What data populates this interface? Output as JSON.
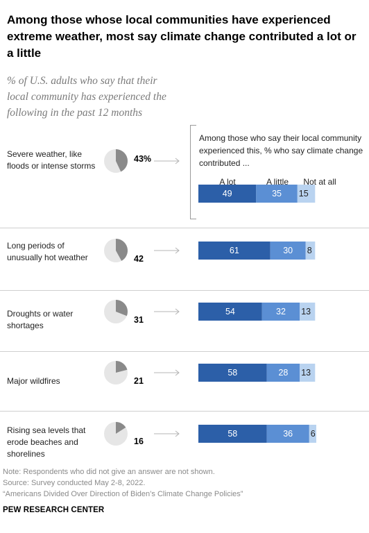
{
  "chart_data": {
    "type": "bar",
    "title": "Among those whose local communities have experienced extreme weather, most say climate change contributed a lot or a little",
    "subtitle": "% of U.S. adults who say that their local community has experienced the following in the past 12 months",
    "legend_intro": "Among those who say their local community experienced this, % who say climate change contributed ...",
    "categories": [
      "Severe weather, like floods or intense storms",
      "Long periods of unusually hot weather",
      "Droughts or water shortages",
      "Major wildfires",
      "Rising sea levels that erode beaches and shorelines"
    ],
    "experienced": [
      {
        "value": 43,
        "label": "43%"
      },
      {
        "value": 42,
        "label": "42"
      },
      {
        "value": 31,
        "label": "31"
      },
      {
        "value": 21,
        "label": "21"
      },
      {
        "value": 16,
        "label": "16"
      }
    ],
    "series": [
      {
        "name": "A lot",
        "values": [
          49,
          61,
          54,
          58,
          58
        ],
        "color": "#2c5fa8"
      },
      {
        "name": "A little",
        "values": [
          35,
          30,
          32,
          28,
          36
        ],
        "color": "#5b8fd4"
      },
      {
        "name": "Not at all",
        "values": [
          15,
          8,
          13,
          13,
          6
        ],
        "color": "#b9d3f0"
      }
    ],
    "stacked": true,
    "pie_colors": {
      "filled": "#8a8a8a",
      "rest": "#e6e6e6"
    }
  },
  "notes": {
    "note": "Note: Respondents who did not give an answer are not shown.",
    "source": "Source: Survey conducted May 2-8, 2022.",
    "report": "“Americans Divided Over Direction of Biden’s Climate Change Policies”"
  },
  "brand": "PEW RESEARCH CENTER"
}
